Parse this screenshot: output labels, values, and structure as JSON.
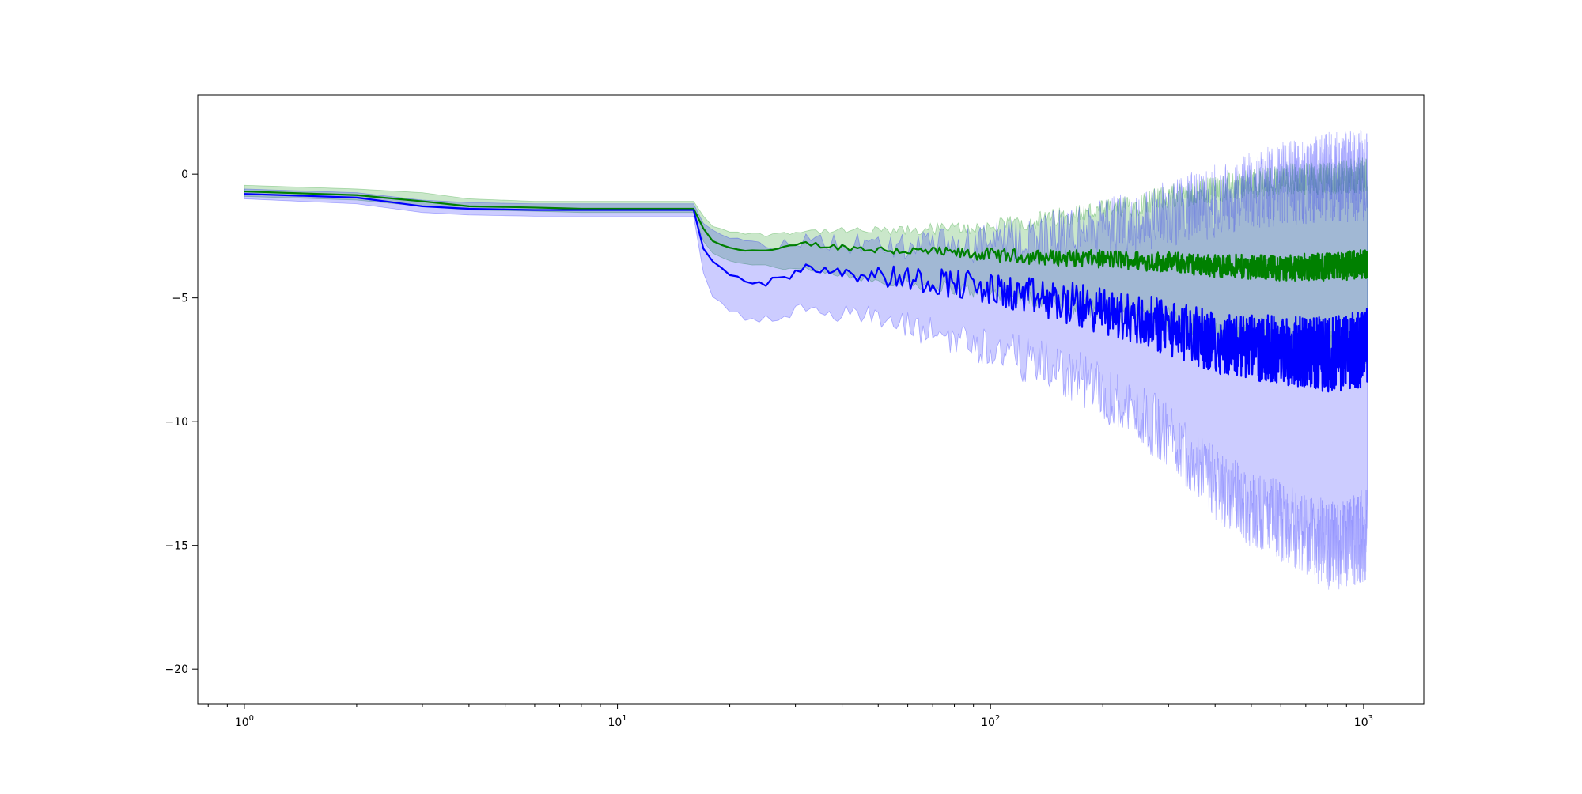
{
  "chart_data": {
    "type": "line",
    "title": "",
    "xlabel": "",
    "ylabel": "",
    "x_scale": "log",
    "xlim": [
      0.75,
      1450
    ],
    "ylim": [
      -21.4,
      3.2
    ],
    "grid": false,
    "legend": "none",
    "x_ticks": [
      {
        "value": 1,
        "base": "10",
        "exp": "0"
      },
      {
        "value": 10,
        "base": "10",
        "exp": "1"
      },
      {
        "value": 100,
        "base": "10",
        "exp": "2"
      },
      {
        "value": 1000,
        "base": "10",
        "exp": "3"
      }
    ],
    "y_ticks": [
      {
        "value": 0,
        "label": "0"
      },
      {
        "value": -5,
        "label": "−5"
      },
      {
        "value": -10,
        "label": "−10"
      },
      {
        "value": -15,
        "label": "−15"
      },
      {
        "value": -20,
        "label": "−20"
      }
    ],
    "series": [
      {
        "color": "#008000",
        "band_color": "#2ca02c",
        "band_opacity": 0.25,
        "x": [
          1,
          2,
          3,
          4,
          6,
          8,
          10,
          13,
          16,
          17,
          18,
          20,
          22,
          25,
          28,
          32,
          36,
          40,
          50,
          60,
          70,
          80,
          100,
          130,
          170,
          220,
          300,
          400,
          500,
          600,
          700,
          800,
          900,
          1024
        ],
        "y": [
          -0.7,
          -0.85,
          -1.1,
          -1.3,
          -1.35,
          -1.4,
          -1.4,
          -1.4,
          -1.4,
          -2.2,
          -2.7,
          -3.0,
          -3.05,
          -3.1,
          -3.0,
          -2.8,
          -2.9,
          -2.95,
          -3.05,
          -3.1,
          -3.15,
          -3.2,
          -3.25,
          -3.35,
          -3.4,
          -3.45,
          -3.55,
          -3.7,
          -3.75,
          -3.8,
          -3.75,
          -3.75,
          -3.7,
          -3.6
        ],
        "lower": [
          -0.9,
          -1.05,
          -1.3,
          -1.45,
          -1.5,
          -1.55,
          -1.55,
          -1.55,
          -1.55,
          -2.7,
          -3.2,
          -3.5,
          -3.6,
          -3.7,
          -3.8,
          -3.9,
          -4.0,
          -4.1,
          -4.3,
          -4.4,
          -4.5,
          -4.6,
          -4.8,
          -5.0,
          -5.3,
          -5.6,
          -5.9,
          -6.5,
          -6.7,
          -6.9,
          -7.0,
          -7.0,
          -7.0,
          -7.0
        ],
        "upper": [
          -0.45,
          -0.6,
          -0.75,
          -1.0,
          -1.1,
          -1.1,
          -1.1,
          -1.1,
          -1.1,
          -1.7,
          -2.1,
          -2.3,
          -2.4,
          -2.45,
          -2.35,
          -2.3,
          -2.3,
          -2.3,
          -2.3,
          -2.3,
          -2.2,
          -2.2,
          -2.15,
          -1.9,
          -1.6,
          -1.4,
          -0.9,
          -0.6,
          -0.4,
          -0.2,
          -0.2,
          -0.2,
          -0.1,
          0.0
        ]
      },
      {
        "color": "#0000ff",
        "band_color": "#0000ff",
        "band_opacity": 0.2,
        "x": [
          1,
          2,
          3,
          4,
          6,
          8,
          10,
          13,
          16,
          17,
          18,
          20,
          22,
          25,
          28,
          32,
          36,
          40,
          50,
          60,
          70,
          80,
          100,
          130,
          170,
          220,
          300,
          400,
          500,
          600,
          700,
          800,
          900,
          1024
        ],
        "y": [
          -0.8,
          -0.95,
          -1.3,
          -1.4,
          -1.45,
          -1.45,
          -1.45,
          -1.45,
          -1.45,
          -3.0,
          -3.5,
          -4.0,
          -4.3,
          -4.4,
          -4.2,
          -3.7,
          -3.8,
          -3.9,
          -4.1,
          -4.2,
          -4.3,
          -4.4,
          -4.7,
          -5.0,
          -5.3,
          -5.7,
          -6.2,
          -6.8,
          -7.0,
          -7.1,
          -7.2,
          -7.3,
          -7.2,
          -7.0
        ],
        "lower": [
          -1.0,
          -1.2,
          -1.55,
          -1.65,
          -1.7,
          -1.7,
          -1.7,
          -1.7,
          -1.7,
          -4.0,
          -5.0,
          -5.5,
          -5.8,
          -5.9,
          -5.8,
          -5.3,
          -5.4,
          -5.6,
          -5.9,
          -6.2,
          -6.4,
          -6.6,
          -7.0,
          -7.6,
          -8.2,
          -9.2,
          -10.5,
          -12.5,
          -13.5,
          -14.0,
          -14.5,
          -15.0,
          -15.0,
          -14.5
        ],
        "upper": [
          -0.6,
          -0.75,
          -1.05,
          -1.15,
          -1.2,
          -1.2,
          -1.2,
          -1.2,
          -1.2,
          -2.0,
          -2.3,
          -2.6,
          -2.8,
          -2.9,
          -2.8,
          -2.7,
          -2.8,
          -2.8,
          -2.9,
          -2.9,
          -2.9,
          -2.9,
          -2.8,
          -2.6,
          -2.3,
          -2.0,
          -1.6,
          -1.1,
          -0.7,
          -0.4,
          -0.3,
          -0.1,
          -0.1,
          0.0
        ]
      }
    ]
  }
}
